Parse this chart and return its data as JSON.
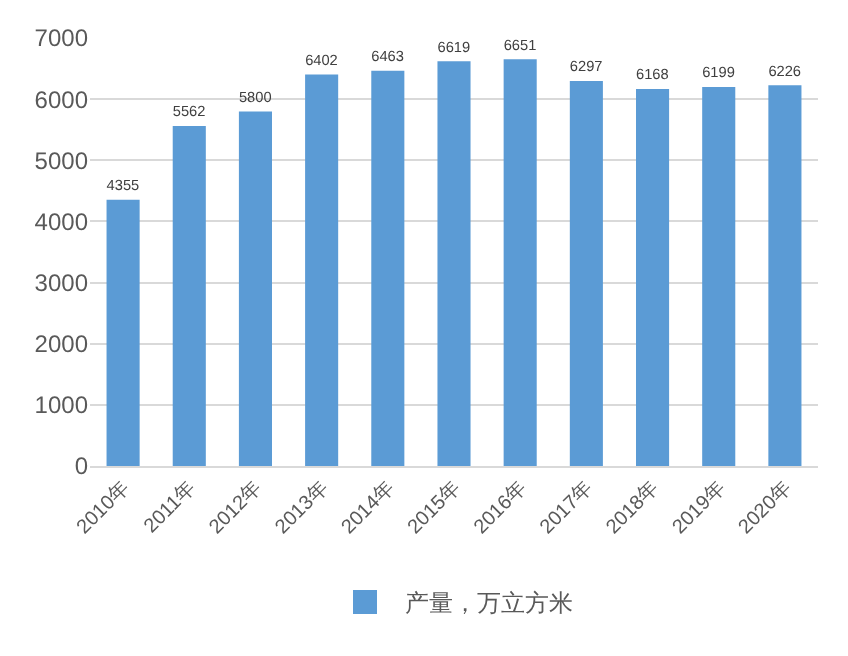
{
  "chart_data": {
    "type": "bar",
    "categories": [
      "2010年",
      "2011年",
      "2012年",
      "2013年",
      "2014年",
      "2015年",
      "2016年",
      "2017年",
      "2018年",
      "2019年",
      "2020年"
    ],
    "series": [
      {
        "name": "产量，万立方米",
        "color": "#5b9bd5",
        "values": [
          4355,
          5562,
          5800,
          6402,
          6463,
          6619,
          6651,
          6297,
          6168,
          6199,
          6226
        ]
      }
    ],
    "ylim": [
      0,
      7000
    ],
    "yticks": [
      0,
      1000,
      2000,
      3000,
      4000,
      5000,
      6000,
      7000
    ],
    "grid": "y",
    "legend": "bottom",
    "data_labels": true
  }
}
